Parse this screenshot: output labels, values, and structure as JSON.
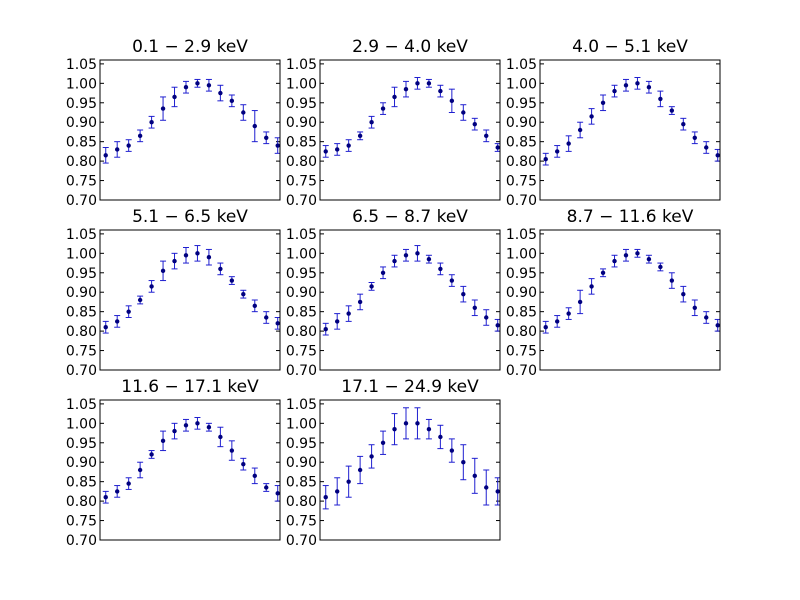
{
  "figure": {
    "background": "#ffffff"
  },
  "style": {
    "marker_color": "#00007f",
    "errorbar_color": "#1f1fd0",
    "axis_color": "#000000"
  },
  "chart_data": [
    {
      "type": "scatter",
      "title": "0.1 − 2.9 keV",
      "ylim": [
        0.7,
        1.06
      ],
      "yticks": [
        "0.70",
        "0.75",
        "0.80",
        "0.85",
        "0.90",
        "0.95",
        "1.00",
        "1.05"
      ],
      "x": [
        0,
        1,
        2,
        3,
        4,
        5,
        6,
        7,
        8,
        9,
        10,
        11,
        12,
        13,
        14,
        15
      ],
      "y": [
        0.815,
        0.83,
        0.84,
        0.865,
        0.9,
        0.935,
        0.965,
        0.99,
        1.0,
        0.995,
        0.975,
        0.955,
        0.925,
        0.89,
        0.86,
        0.84
      ],
      "yerr": [
        0.02,
        0.02,
        0.015,
        0.015,
        0.015,
        0.03,
        0.025,
        0.015,
        0.01,
        0.015,
        0.02,
        0.015,
        0.02,
        0.04,
        0.015,
        0.02
      ],
      "grid": false
    },
    {
      "type": "scatter",
      "title": "2.9 − 4.0 keV",
      "ylim": [
        0.7,
        1.06
      ],
      "yticks": [
        "0.70",
        "0.75",
        "0.80",
        "0.85",
        "0.90",
        "0.95",
        "1.00",
        "1.05"
      ],
      "x": [
        0,
        1,
        2,
        3,
        4,
        5,
        6,
        7,
        8,
        9,
        10,
        11,
        12,
        13,
        14,
        15
      ],
      "y": [
        0.825,
        0.83,
        0.84,
        0.865,
        0.9,
        0.935,
        0.965,
        0.985,
        1.0,
        1.0,
        0.98,
        0.955,
        0.925,
        0.895,
        0.865,
        0.835
      ],
      "yerr": [
        0.015,
        0.015,
        0.015,
        0.01,
        0.015,
        0.015,
        0.025,
        0.02,
        0.015,
        0.01,
        0.015,
        0.03,
        0.02,
        0.015,
        0.015,
        0.01
      ],
      "grid": false
    },
    {
      "type": "scatter",
      "title": "4.0 − 5.1 keV",
      "ylim": [
        0.7,
        1.06
      ],
      "yticks": [
        "0.70",
        "0.75",
        "0.80",
        "0.85",
        "0.90",
        "0.95",
        "1.00",
        "1.05"
      ],
      "x": [
        0,
        1,
        2,
        3,
        4,
        5,
        6,
        7,
        8,
        9,
        10,
        11,
        12,
        13,
        14,
        15
      ],
      "y": [
        0.805,
        0.825,
        0.845,
        0.88,
        0.915,
        0.95,
        0.98,
        0.995,
        1.0,
        0.99,
        0.96,
        0.93,
        0.895,
        0.86,
        0.835,
        0.815
      ],
      "yerr": [
        0.015,
        0.015,
        0.02,
        0.02,
        0.02,
        0.02,
        0.015,
        0.015,
        0.015,
        0.015,
        0.02,
        0.01,
        0.015,
        0.015,
        0.015,
        0.015
      ],
      "grid": false
    },
    {
      "type": "scatter",
      "title": "5.1 − 6.5 keV",
      "ylim": [
        0.7,
        1.06
      ],
      "yticks": [
        "0.70",
        "0.75",
        "0.80",
        "0.85",
        "0.90",
        "0.95",
        "1.00",
        "1.05"
      ],
      "x": [
        0,
        1,
        2,
        3,
        4,
        5,
        6,
        7,
        8,
        9,
        10,
        11,
        12,
        13,
        14,
        15
      ],
      "y": [
        0.81,
        0.825,
        0.85,
        0.88,
        0.915,
        0.955,
        0.98,
        0.995,
        1.0,
        0.99,
        0.96,
        0.93,
        0.895,
        0.865,
        0.835,
        0.82
      ],
      "yerr": [
        0.015,
        0.015,
        0.015,
        0.01,
        0.015,
        0.025,
        0.02,
        0.02,
        0.02,
        0.02,
        0.015,
        0.01,
        0.01,
        0.015,
        0.015,
        0.015
      ],
      "grid": false
    },
    {
      "type": "scatter",
      "title": "6.5 − 8.7 keV",
      "ylim": [
        0.7,
        1.06
      ],
      "yticks": [
        "0.70",
        "0.75",
        "0.80",
        "0.85",
        "0.90",
        "0.95",
        "1.00",
        "1.05"
      ],
      "x": [
        0,
        1,
        2,
        3,
        4,
        5,
        6,
        7,
        8,
        9,
        10,
        11,
        12,
        13,
        14,
        15
      ],
      "y": [
        0.805,
        0.825,
        0.845,
        0.875,
        0.915,
        0.95,
        0.98,
        0.995,
        1.0,
        0.985,
        0.96,
        0.93,
        0.895,
        0.86,
        0.835,
        0.815
      ],
      "yerr": [
        0.015,
        0.02,
        0.02,
        0.02,
        0.01,
        0.015,
        0.015,
        0.015,
        0.02,
        0.01,
        0.015,
        0.015,
        0.02,
        0.02,
        0.02,
        0.015
      ],
      "grid": false
    },
    {
      "type": "scatter",
      "title": "8.7 − 11.6 keV",
      "ylim": [
        0.7,
        1.06
      ],
      "yticks": [
        "0.70",
        "0.75",
        "0.80",
        "0.85",
        "0.90",
        "0.95",
        "1.00",
        "1.05"
      ],
      "x": [
        0,
        1,
        2,
        3,
        4,
        5,
        6,
        7,
        8,
        9,
        10,
        11,
        12,
        13,
        14,
        15
      ],
      "y": [
        0.81,
        0.825,
        0.845,
        0.875,
        0.915,
        0.95,
        0.98,
        0.995,
        1.0,
        0.985,
        0.965,
        0.93,
        0.895,
        0.86,
        0.835,
        0.815
      ],
      "yerr": [
        0.015,
        0.015,
        0.015,
        0.03,
        0.02,
        0.01,
        0.015,
        0.015,
        0.01,
        0.01,
        0.01,
        0.02,
        0.02,
        0.02,
        0.015,
        0.015
      ],
      "grid": false
    },
    {
      "type": "scatter",
      "title": "11.6 − 17.1 keV",
      "ylim": [
        0.7,
        1.06
      ],
      "yticks": [
        "0.70",
        "0.75",
        "0.80",
        "0.85",
        "0.90",
        "0.95",
        "1.00",
        "1.05"
      ],
      "x": [
        0,
        1,
        2,
        3,
        4,
        5,
        6,
        7,
        8,
        9,
        10,
        11,
        12,
        13,
        14,
        15
      ],
      "y": [
        0.81,
        0.825,
        0.845,
        0.88,
        0.92,
        0.955,
        0.98,
        0.995,
        1.0,
        0.99,
        0.965,
        0.93,
        0.895,
        0.865,
        0.835,
        0.82
      ],
      "yerr": [
        0.015,
        0.015,
        0.015,
        0.02,
        0.01,
        0.025,
        0.02,
        0.015,
        0.015,
        0.01,
        0.025,
        0.025,
        0.015,
        0.02,
        0.01,
        0.02
      ],
      "grid": false
    },
    {
      "type": "scatter",
      "title": "17.1 − 24.9 keV",
      "ylim": [
        0.7,
        1.06
      ],
      "yticks": [
        "0.70",
        "0.75",
        "0.80",
        "0.85",
        "0.90",
        "0.95",
        "1.00",
        "1.05"
      ],
      "x": [
        0,
        1,
        2,
        3,
        4,
        5,
        6,
        7,
        8,
        9,
        10,
        11,
        12,
        13,
        14,
        15
      ],
      "y": [
        0.81,
        0.825,
        0.85,
        0.88,
        0.915,
        0.95,
        0.985,
        1.0,
        1.0,
        0.985,
        0.965,
        0.93,
        0.9,
        0.865,
        0.835,
        0.825
      ],
      "yerr": [
        0.03,
        0.035,
        0.04,
        0.035,
        0.03,
        0.03,
        0.04,
        0.04,
        0.04,
        0.025,
        0.03,
        0.03,
        0.045,
        0.045,
        0.045,
        0.035
      ],
      "grid": false
    }
  ]
}
